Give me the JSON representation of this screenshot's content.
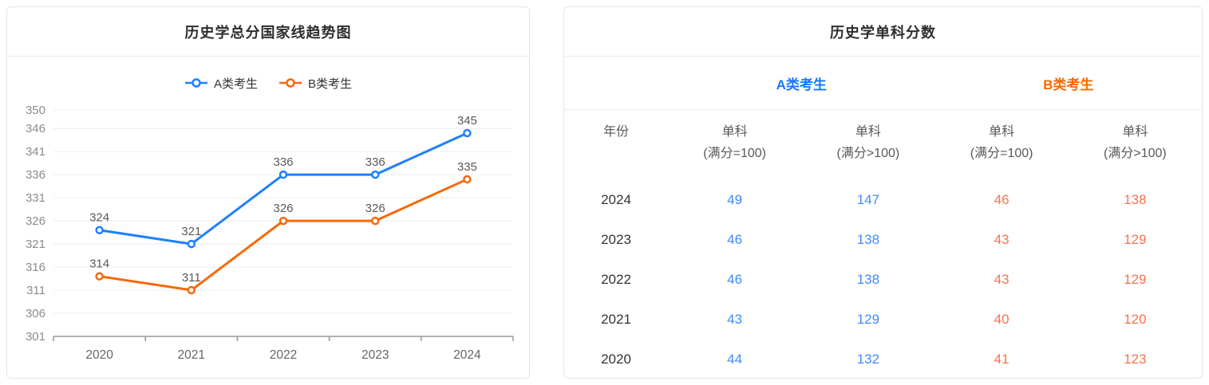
{
  "colors": {
    "line_blue": "#1e80ff",
    "line_orange": "#f5690c",
    "header_blue": "#1677ff",
    "header_orange": "#ff6600",
    "table_blue": "#3d8bfd",
    "table_orange": "#f9724e",
    "grid_line": "#e8edf5",
    "axis_line": "#999999"
  },
  "chart_data": [
    {
      "type": "line",
      "title": "历史学总分国家线趋势图",
      "categories": [
        "2020",
        "2021",
        "2022",
        "2023",
        "2024"
      ],
      "series": [
        {
          "name": "A类考生",
          "color": "#1e80ff",
          "values": [
            324,
            321,
            336,
            336,
            345
          ]
        },
        {
          "name": "B类考生",
          "color": "#f5690c",
          "values": [
            314,
            311,
            326,
            326,
            335
          ]
        }
      ],
      "ylim": [
        301,
        350
      ],
      "yticks": [
        301,
        306,
        311,
        316,
        321,
        326,
        331,
        336,
        341,
        346,
        350
      ],
      "grid": true,
      "legend_position": "top",
      "data_labels": true
    },
    {
      "type": "table",
      "title": "历史学单科分数",
      "group_headers": [
        {
          "label": "A类考生",
          "color": "#1677ff"
        },
        {
          "label": "B类考生",
          "color": "#ff6600"
        }
      ],
      "columns": [
        {
          "l1": "年份",
          "l2": ""
        },
        {
          "l1": "单科",
          "l2": "(满分=100)"
        },
        {
          "l1": "单科",
          "l2": "(满分>100)"
        },
        {
          "l1": "单科",
          "l2": "(满分=100)"
        },
        {
          "l1": "单科",
          "l2": "(满分>100)"
        }
      ],
      "rows": [
        {
          "year": "2024",
          "a1": "49",
          "a2": "147",
          "b1": "46",
          "b2": "138"
        },
        {
          "year": "2023",
          "a1": "46",
          "a2": "138",
          "b1": "43",
          "b2": "129"
        },
        {
          "year": "2022",
          "a1": "46",
          "a2": "138",
          "b1": "43",
          "b2": "129"
        },
        {
          "year": "2021",
          "a1": "43",
          "a2": "129",
          "b1": "40",
          "b2": "120"
        },
        {
          "year": "2020",
          "a1": "44",
          "a2": "132",
          "b1": "41",
          "b2": "123"
        }
      ]
    }
  ]
}
